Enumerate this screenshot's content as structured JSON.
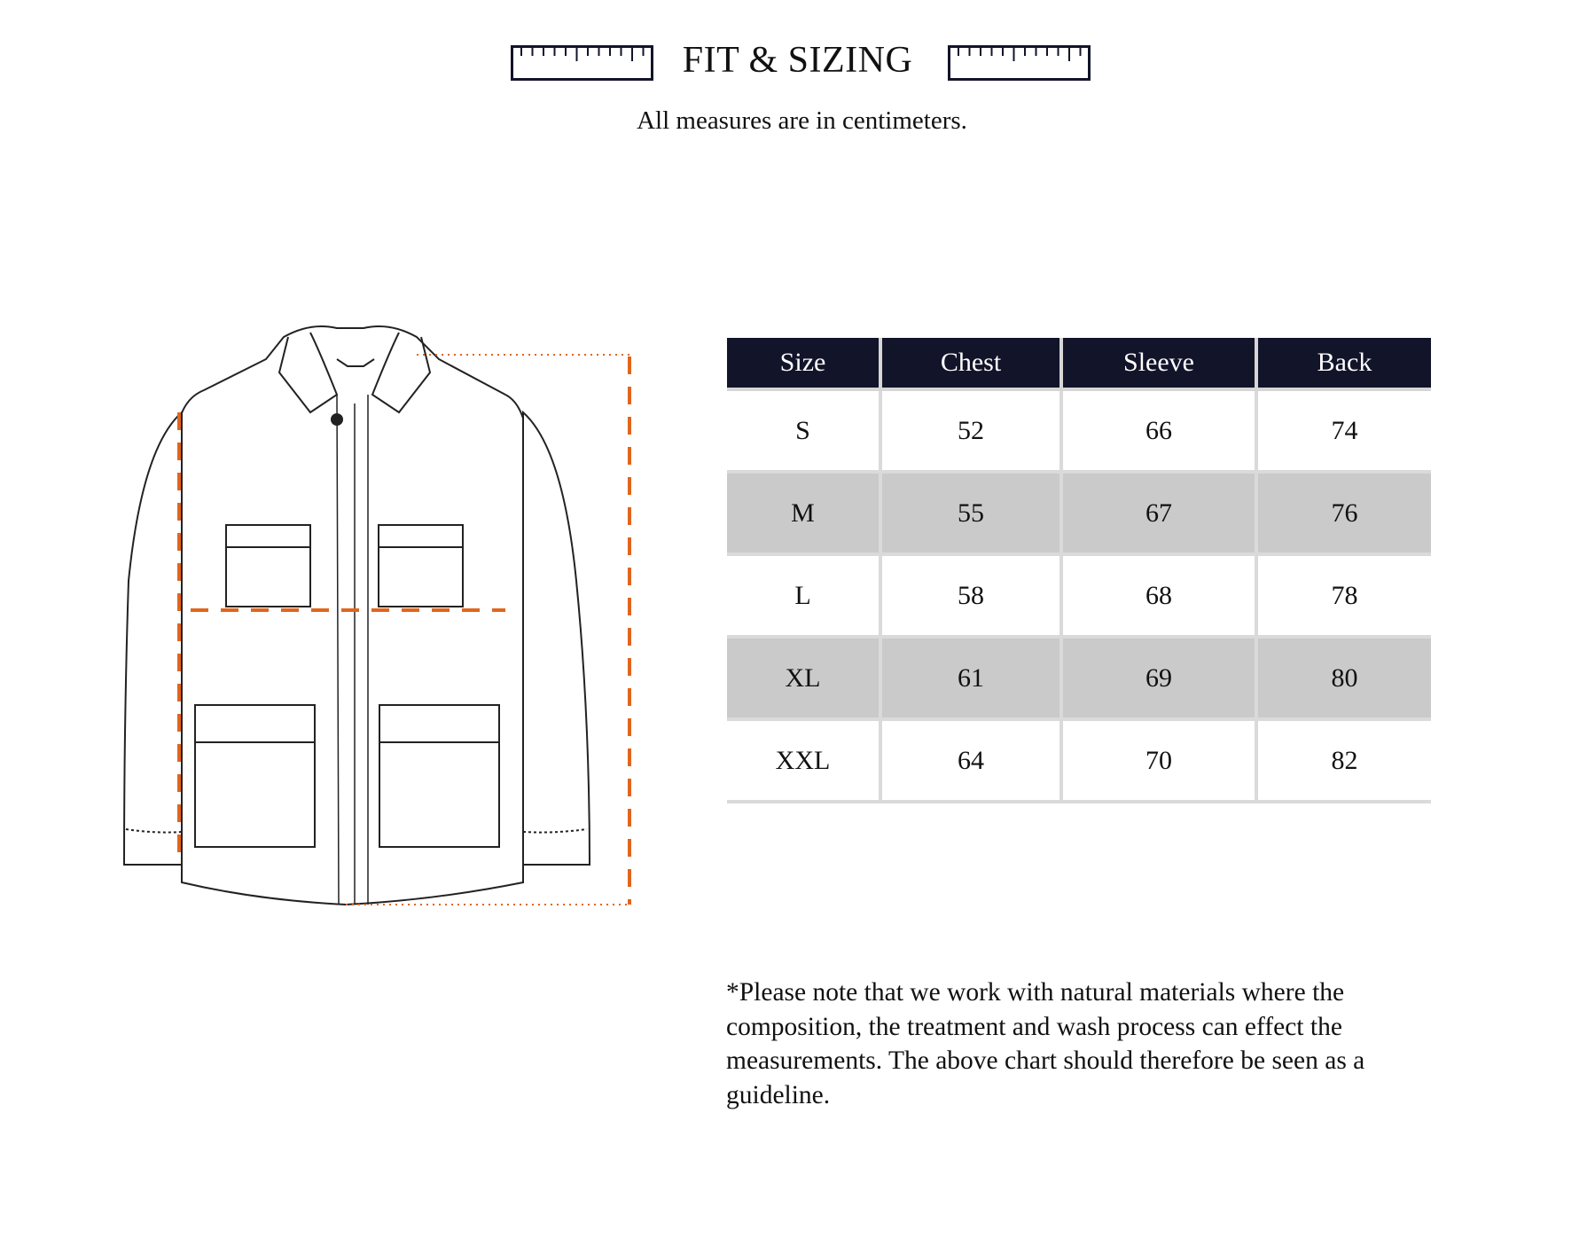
{
  "header": {
    "title": "FIT & SIZING",
    "subtitle": "All measures are in centimeters.",
    "ruler_icon": "ruler-icon",
    "ruler_color": "#12142a"
  },
  "illustration": {
    "subject": "jacket-technical-drawing",
    "measure_line_color": "#e0661e"
  },
  "table": {
    "columns": [
      "Size",
      "Chest",
      "Sleeve",
      "Back"
    ],
    "rows": [
      [
        "S",
        "52",
        "66",
        "74"
      ],
      [
        "M",
        "55",
        "67",
        "76"
      ],
      [
        "L",
        "58",
        "68",
        "78"
      ],
      [
        "XL",
        "61",
        "69",
        "80"
      ],
      [
        "XXL",
        "64",
        "70",
        "82"
      ]
    ],
    "header_bg": "#12142a",
    "alt_row_bg": "#cacaca"
  },
  "note": "*Please note that we work with natural materials where the composition, the treatment and wash process can effect the measurements. The above chart should therefore be seen as a guideline."
}
